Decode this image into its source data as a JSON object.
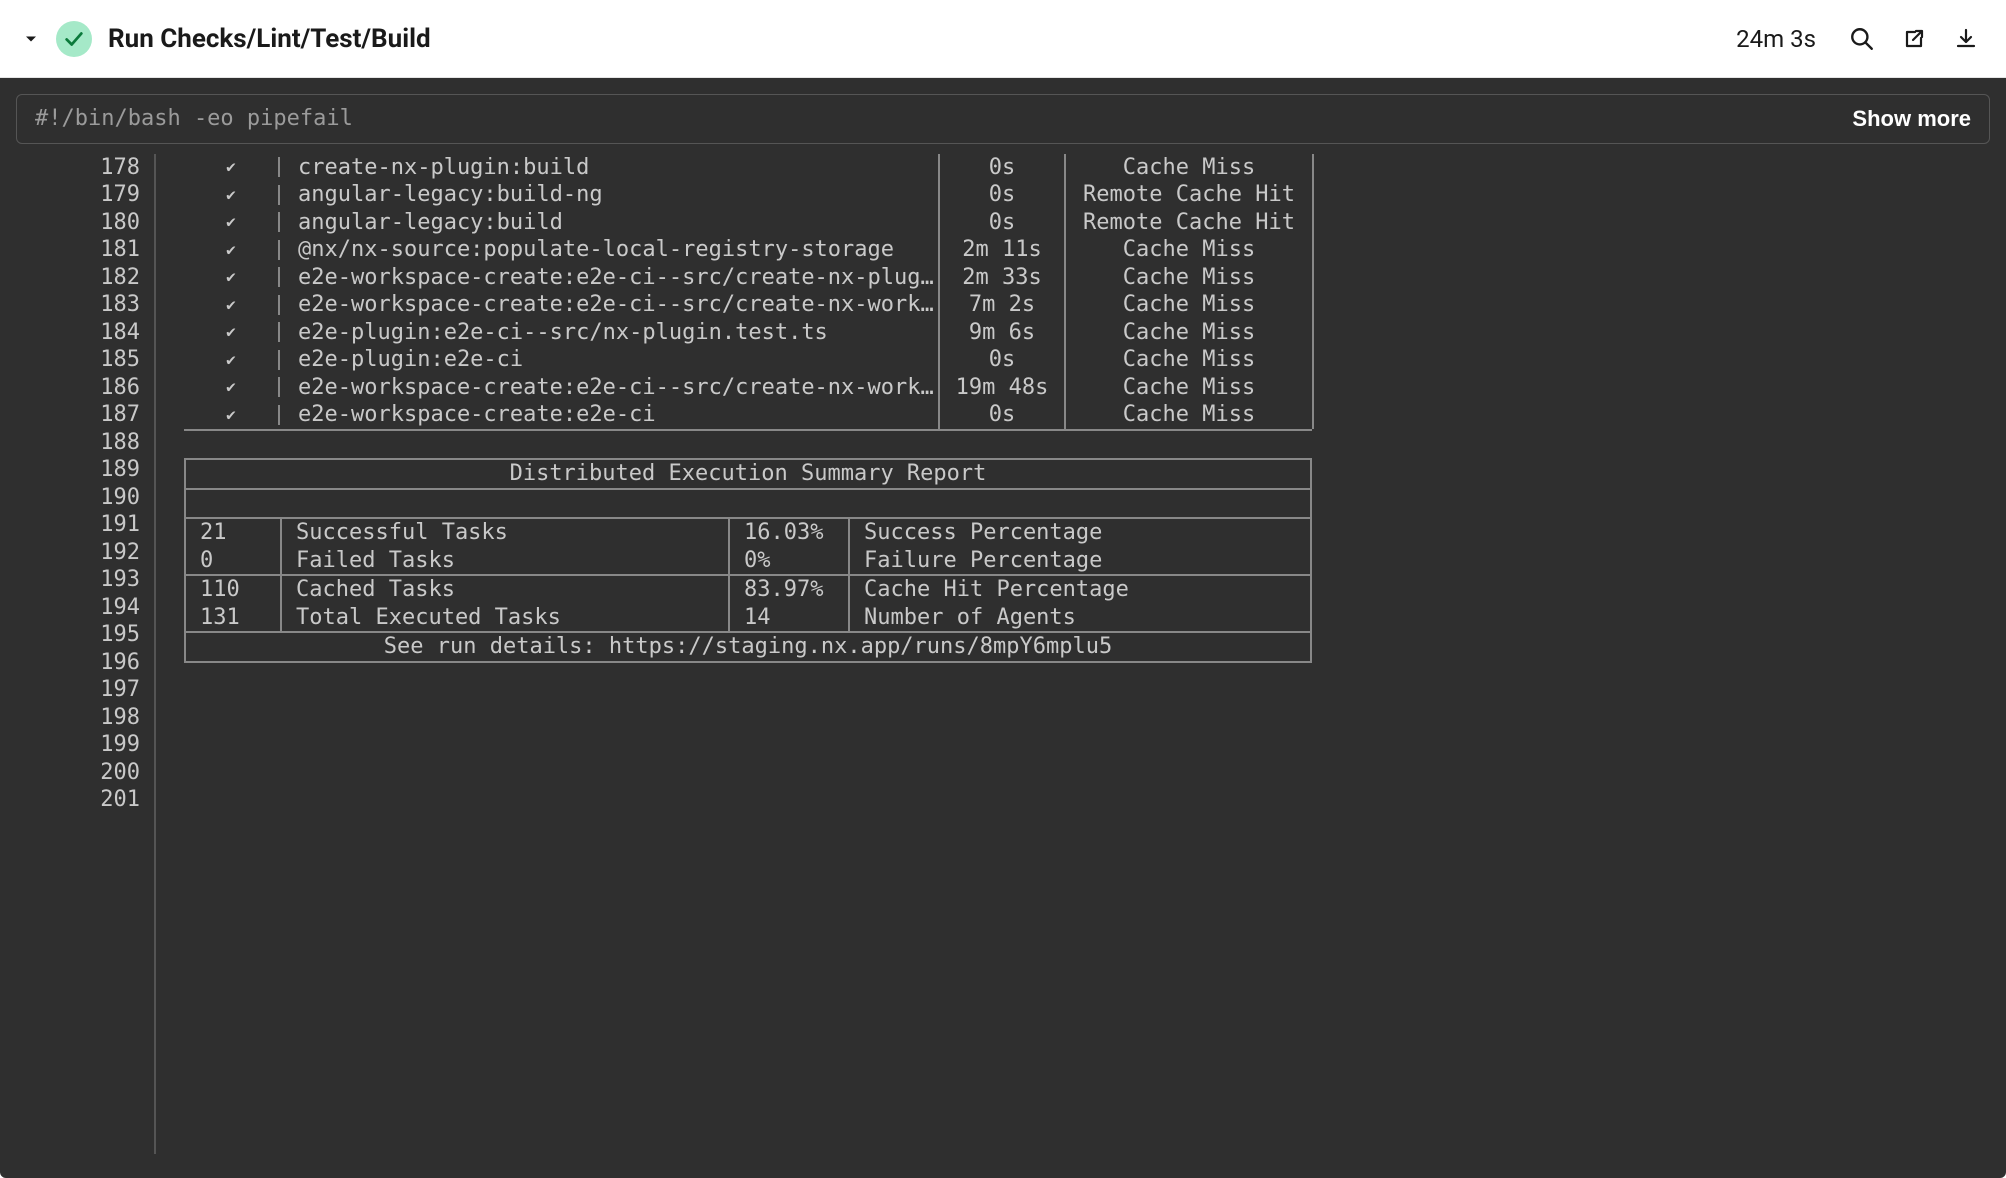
{
  "header": {
    "title": "Run Checks/Lint/Test/Build",
    "duration": "24m 3s"
  },
  "command_bar": {
    "command": "#!/bin/bash -eo pipefail",
    "show_more_label": "Show more"
  },
  "gutter": {
    "start": 178,
    "end": 201
  },
  "tasks": [
    {
      "check": "✔",
      "name": "create-nx-plugin:build",
      "time": "0s",
      "cache": "Cache Miss"
    },
    {
      "check": "✔",
      "name": "angular-legacy:build-ng",
      "time": "0s",
      "cache": "Remote Cache Hit"
    },
    {
      "check": "✔",
      "name": "angular-legacy:build",
      "time": "0s",
      "cache": "Remote Cache Hit"
    },
    {
      "check": "✔",
      "name": "@nx/nx-source:populate-local-registry-storage",
      "time": "2m 11s",
      "cache": "Cache Miss"
    },
    {
      "check": "✔",
      "name": "e2e-workspace-create:e2e-ci--src/create-nx-plugin.test…",
      "time": "2m 33s",
      "cache": "Cache Miss"
    },
    {
      "check": "✔",
      "name": "e2e-workspace-create:e2e-ci--src/create-nx-workspace-n…",
      "time": "7m 2s",
      "cache": "Cache Miss"
    },
    {
      "check": "✔",
      "name": "e2e-plugin:e2e-ci--src/nx-plugin.test.ts",
      "time": "9m 6s",
      "cache": "Cache Miss"
    },
    {
      "check": "✔",
      "name": "e2e-plugin:e2e-ci",
      "time": "0s",
      "cache": "Cache Miss"
    },
    {
      "check": "✔",
      "name": "e2e-workspace-create:e2e-ci--src/create-nx-workspace.t…",
      "time": "19m 48s",
      "cache": "Cache Miss"
    },
    {
      "check": "✔",
      "name": "e2e-workspace-create:e2e-ci",
      "time": "0s",
      "cache": "Cache Miss"
    }
  ],
  "summary": {
    "title": "Distributed Execution Summary Report",
    "row1": {
      "c1a": "21",
      "c2a": "Successful Tasks",
      "c3a": "16.03%",
      "c4a": "Success Percentage",
      "c1b": "0",
      "c2b": "Failed Tasks",
      "c3b": "0%",
      "c4b": "Failure Percentage"
    },
    "row2": {
      "c1a": "110",
      "c2a": "Cached Tasks",
      "c3a": "83.97%",
      "c4a": "Cache Hit Percentage",
      "c1b": "131",
      "c2b": "Total Executed Tasks",
      "c3b": "14",
      "c4b": "Number of Agents"
    },
    "link_text": "See run details: https://staging.nx.app/runs/8mpY6mplu5"
  },
  "colors": {
    "header_bg": "#ffffff",
    "terminal_bg": "#2f2f2f",
    "text": "#c9c9c9",
    "dim_text": "#9b9b9b",
    "border": "#888888",
    "status_bg": "#a5e9c8",
    "check_stroke": "#0b7a3b"
  }
}
